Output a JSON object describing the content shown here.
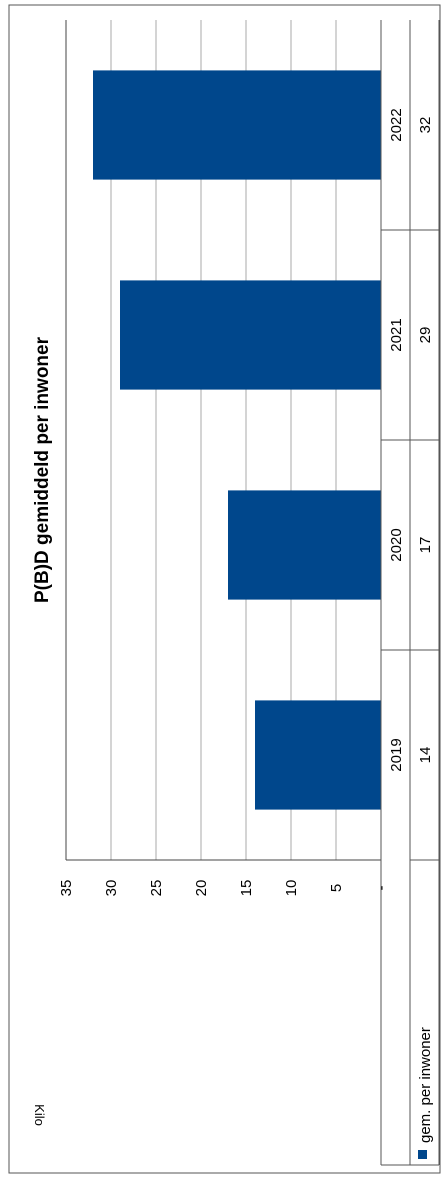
{
  "chart_data": {
    "type": "bar",
    "orientation": "rotated-90",
    "title": "P(B)D gemiddeld per inwoner",
    "ylabel": "Kilo",
    "categories": [
      "2019",
      "2020",
      "2021",
      "2022"
    ],
    "series": [
      {
        "name": "gem. per inwoner",
        "values": [
          14,
          17,
          29,
          32
        ]
      }
    ],
    "table_values": [
      "14",
      "17",
      "29",
      "32"
    ],
    "yticks": [
      "-",
      "5",
      "10",
      "15",
      "20",
      "25",
      "30",
      "35"
    ],
    "ylim": [
      0,
      35
    ],
    "grid": true,
    "legend": "data-table",
    "colors": {
      "bar": "#00478C",
      "grid": "#a8a8a8",
      "frame": "#555555"
    }
  }
}
